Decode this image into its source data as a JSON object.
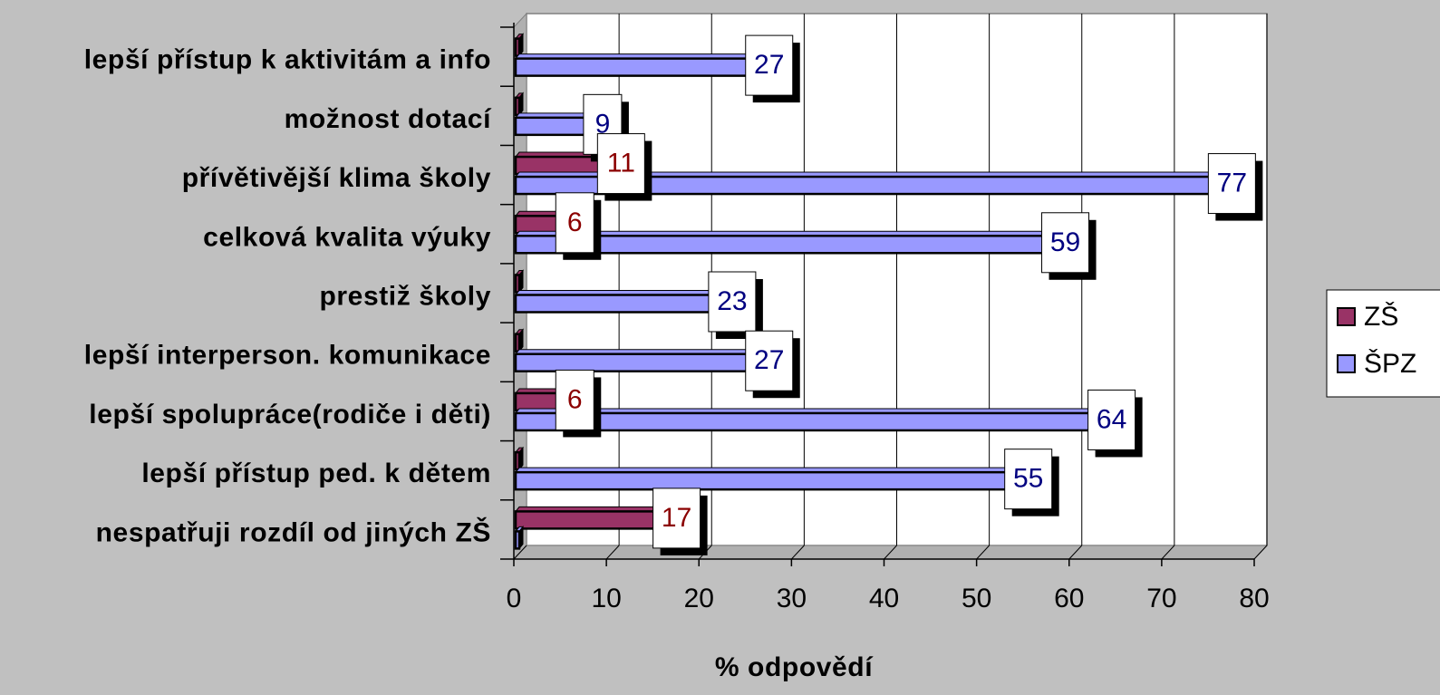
{
  "chart_data": {
    "type": "bar",
    "orientation": "horizontal",
    "style": "3d",
    "categories": [
      "lepší přístup k aktivitám a info",
      "možnost dotací",
      "přívětivější klima školy",
      "celková kvalita výuky",
      "prestiž školy ",
      "lepší interperson. komunikace",
      "lepší spolupráce(rodiče i děti)",
      "lepší přístup ped. k dětem",
      "nespatřuji rozdíl od jiných ZŠ"
    ],
    "series": [
      {
        "name": "ZŠ",
        "color": "#993366",
        "label_color": "#8b0000",
        "values": [
          0,
          0,
          11,
          6,
          0,
          0,
          6,
          0,
          17
        ],
        "labels": [
          "",
          "",
          "11",
          "6",
          "",
          "",
          "6",
          "",
          "17"
        ]
      },
      {
        "name": "ŠPZ",
        "color": "#9999ff",
        "label_color": "#000080",
        "values": [
          27,
          9,
          77,
          59,
          23,
          27,
          64,
          55,
          0
        ],
        "labels": [
          "27",
          "9",
          "77",
          "59",
          "23",
          "27",
          "64",
          "55",
          ""
        ]
      }
    ],
    "xlabel": "% odpovědí",
    "ylabel": "",
    "xlim": [
      0,
      80
    ],
    "xticks": [
      "0",
      "10",
      "20",
      "30",
      "40",
      "50",
      "60",
      "70",
      "80"
    ],
    "grid": true,
    "legend_position": "right"
  }
}
